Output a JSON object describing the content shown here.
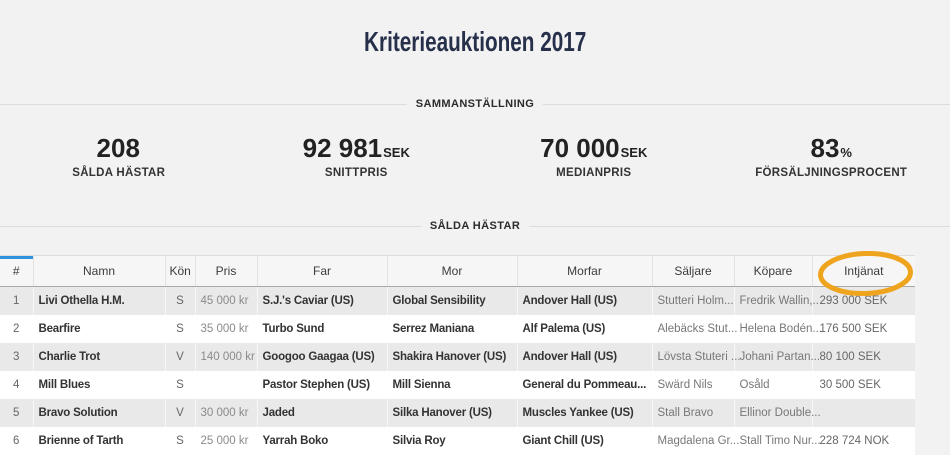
{
  "page": {
    "title": "Kriterieauktionen 2017"
  },
  "summary": {
    "heading": "SAMMANSTÄLLNING",
    "stats": [
      {
        "value": "208",
        "suffix": "",
        "label": "SÅLDA HÄSTAR"
      },
      {
        "value": "92 981",
        "suffix": "SEK",
        "label": "SNITTPRIS"
      },
      {
        "value": "70 000",
        "suffix": "SEK",
        "label": "MEDIANPRIS"
      },
      {
        "value": "83",
        "suffix": "%",
        "label": "FÖRSÄLJNINGSPROCENT"
      }
    ]
  },
  "table": {
    "heading": "SÅLDA HÄSTAR",
    "columns": [
      "#",
      "Namn",
      "Kön",
      "Pris",
      "Far",
      "Mor",
      "Morfar",
      "Säljare",
      "Köpare",
      "Intjänat"
    ],
    "sorted_column": "#",
    "rows": [
      {
        "num": "1",
        "namn": "Livi Othella H.M.",
        "kon": "S",
        "pris": "45 000 kr",
        "far": "S.J.'s Caviar (US)",
        "mor": "Global Sensibility",
        "morfar": "Andover Hall (US)",
        "saljare": "Stutteri Holm...",
        "kopare": "Fredrik Wallin,...",
        "intjanat": "293 000 SEK"
      },
      {
        "num": "2",
        "namn": "Bearfire",
        "kon": "S",
        "pris": "35 000 kr",
        "far": "Turbo Sund",
        "mor": "Serrez Maniana",
        "morfar": "Alf Palema (US)",
        "saljare": "Alebäcks Stut...",
        "kopare": "Helena Bodén...",
        "intjanat": "176 500 SEK"
      },
      {
        "num": "3",
        "namn": "Charlie Trot",
        "kon": "V",
        "pris": "140 000 kr",
        "far": "Googoo Gaagaa (US)",
        "mor": "Shakira Hanover (US)",
        "morfar": "Andover Hall (US)",
        "saljare": "Lövsta Stuteri ...",
        "kopare": "Johani Partan...",
        "intjanat": "80 100 SEK"
      },
      {
        "num": "4",
        "namn": "Mill Blues",
        "kon": "S",
        "pris": "",
        "far": "Pastor Stephen (US)",
        "mor": "Mill Sienna",
        "morfar": "General du Pommeau...",
        "saljare": "Swärd Nils",
        "kopare": "Osåld",
        "intjanat": "30 500 SEK"
      },
      {
        "num": "5",
        "namn": "Bravo Solution",
        "kon": "V",
        "pris": "30 000 kr",
        "far": "Jaded",
        "mor": "Silka Hanover (US)",
        "morfar": "Muscles Yankee (US)",
        "saljare": "Stall Bravo",
        "kopare": "Ellinor Double...",
        "intjanat": ""
      },
      {
        "num": "6",
        "namn": "Brienne of Tarth",
        "kon": "S",
        "pris": "25 000 kr",
        "far": "Yarrah Boko",
        "mor": "Silvia Roy",
        "morfar": "Giant Chill (US)",
        "saljare": "Magdalena Gr...",
        "kopare": "Stall Timo Nur...",
        "intjanat": "228 724 NOK"
      }
    ]
  },
  "annotation": {
    "type": "ellipse",
    "target": "Intjänat",
    "color": "#efa41d"
  },
  "colors": {
    "title_navy": "#27304a",
    "sort_indicator_blue": "#2e93dd",
    "annotation_orange": "#efa41d",
    "page_background": "#f2f2f2",
    "row_alt_gray": "#e9e9e9"
  }
}
